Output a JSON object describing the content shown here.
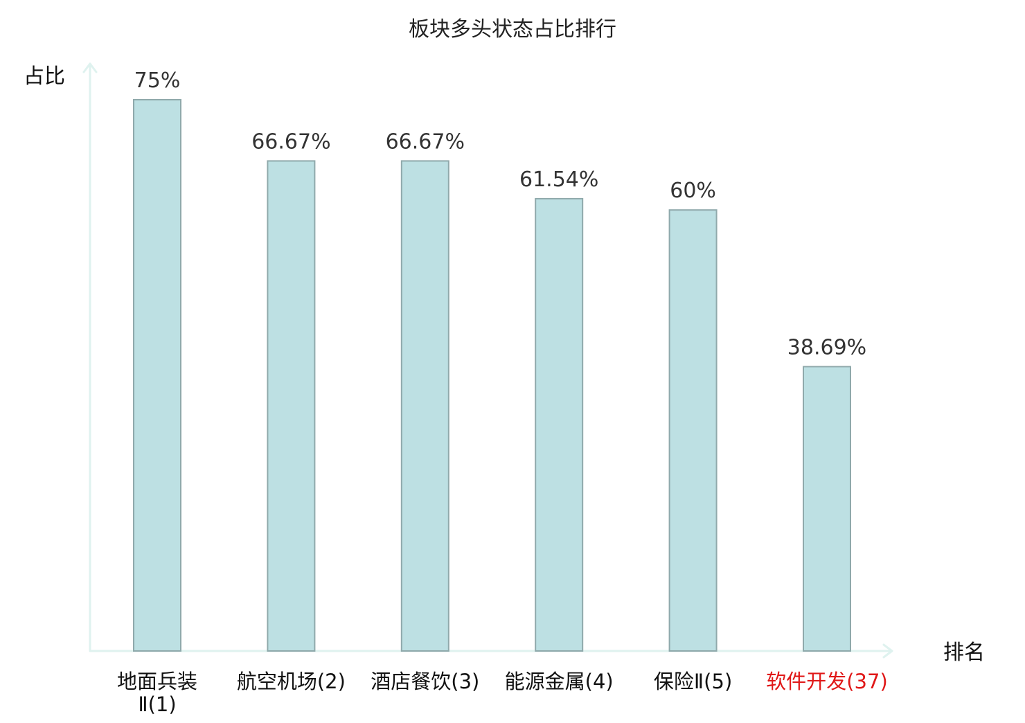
{
  "chart_data": {
    "type": "bar",
    "title": "板块多头状态占比排行",
    "ylabel": "占比",
    "xlabel": "排名",
    "categories": [
      [
        "地面兵装",
        "Ⅱ(1)"
      ],
      [
        "航空机场(2)"
      ],
      [
        "酒店餐饮(3)"
      ],
      [
        "能源金属(4)"
      ],
      [
        "保险Ⅱ(5)"
      ],
      [
        "软件开发(37)"
      ]
    ],
    "values": [
      75,
      66.67,
      66.67,
      61.54,
      60,
      38.69
    ],
    "value_labels": [
      "75%",
      "66.67%",
      "66.67%",
      "61.54%",
      "60%",
      "38.69%"
    ],
    "ylim": [
      0,
      75
    ],
    "highlight_index": 5,
    "grid": false,
    "colors": {
      "bar_fill": "#bde0e3",
      "bar_stroke": "#8fa9ab",
      "axis": "#dff2ef",
      "text": "#333333",
      "highlight": "#e01818"
    }
  }
}
